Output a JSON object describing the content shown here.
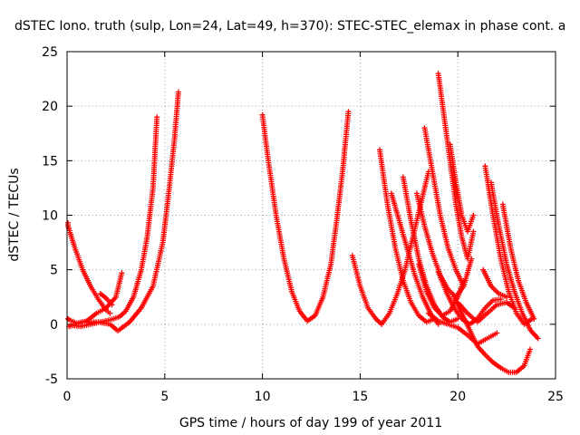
{
  "chart_data": {
    "type": "scatter",
    "title": "dSTEC Iono. truth (sulp, Lon=24, Lat=49, h=370): STEC-STEC_elemax in phase cont. a",
    "xlabel": "GPS time / hours of day 199 of year 2011",
    "ylabel": "dSTEC  / TECUs",
    "xlim": [
      0,
      25
    ],
    "ylim": [
      -5,
      25
    ],
    "xticks": [
      "0",
      "5",
      "10",
      "15",
      "20",
      "25"
    ],
    "yticks": [
      "-5",
      "0",
      "5",
      "10",
      "15",
      "20",
      "25"
    ],
    "xtick_values": [
      0,
      5,
      10,
      15,
      20,
      25
    ],
    "ytick_values": [
      -5,
      0,
      5,
      10,
      15,
      20,
      25
    ],
    "grid": true,
    "marker": "+",
    "color": "#ff0000",
    "series": [
      {
        "x": [
          0.0,
          0.4,
          0.8,
          1.2,
          1.6,
          2.0,
          2.2
        ],
        "y": [
          9.3,
          7.0,
          5.0,
          3.5,
          2.3,
          1.3,
          1.0
        ]
      },
      {
        "x": [
          0.0,
          0.5,
          1.0,
          1.5,
          2.0,
          2.5,
          2.8
        ],
        "y": [
          0.5,
          0.1,
          0.3,
          1.0,
          1.5,
          2.5,
          4.7
        ]
      },
      {
        "x": [
          0.2,
          0.7,
          1.2,
          1.7,
          2.2,
          2.7,
          3.0,
          3.4,
          3.8,
          4.1,
          4.4,
          4.6
        ],
        "y": [
          -0.1,
          -0.2,
          0.0,
          0.2,
          0.4,
          0.7,
          1.2,
          2.5,
          5.0,
          8.0,
          12.5,
          19.0
        ]
      },
      {
        "x": [
          0.1,
          0.8,
          1.6,
          2.2,
          2.6,
          3.2,
          3.8,
          4.4,
          4.9,
          5.2,
          5.5,
          5.7
        ],
        "y": [
          -0.2,
          0.2,
          0.2,
          0.0,
          -0.6,
          0.2,
          1.5,
          3.5,
          7.5,
          12.0,
          17.0,
          21.3
        ]
      },
      {
        "x": [
          1.7,
          2.0,
          2.3
        ],
        "y": [
          2.8,
          2.4,
          1.8
        ]
      },
      {
        "x": [
          10.0,
          10.3,
          10.7,
          11.1,
          11.5,
          11.9,
          12.3,
          12.7,
          13.1,
          13.5,
          13.8,
          14.1,
          14.4
        ],
        "y": [
          19.2,
          15.0,
          10.0,
          6.0,
          3.0,
          1.2,
          0.3,
          0.8,
          2.5,
          5.5,
          9.5,
          14.0,
          19.5
        ]
      },
      {
        "x": [
          14.6,
          15.0,
          15.4,
          15.8,
          16.1
        ],
        "y": [
          6.3,
          3.5,
          1.5,
          0.5,
          0.0
        ]
      },
      {
        "x": [
          16.1,
          16.5,
          16.9,
          17.3,
          17.7,
          18.1,
          18.5
        ],
        "y": [
          0.0,
          1.0,
          2.8,
          5.0,
          8.0,
          11.0,
          14.0
        ]
      },
      {
        "x": [
          16.0,
          16.4,
          16.8,
          17.2,
          17.6,
          18.0,
          18.4,
          18.8
        ],
        "y": [
          16.0,
          11.0,
          7.0,
          4.0,
          2.0,
          0.8,
          0.2,
          0.5
        ]
      },
      {
        "x": [
          16.6,
          17.0,
          17.4,
          17.8,
          18.2,
          18.6,
          19.0
        ],
        "y": [
          12.0,
          9.5,
          7.0,
          4.5,
          2.5,
          1.0,
          0.0
        ]
      },
      {
        "x": [
          17.2,
          17.6,
          18.0,
          18.4,
          18.8,
          19.2,
          19.6,
          20.0
        ],
        "y": [
          13.5,
          9.5,
          6.0,
          3.5,
          1.8,
          0.7,
          0.2,
          0.5
        ]
      },
      {
        "x": [
          18.0,
          18.4,
          18.8,
          19.2,
          19.6,
          20.0,
          20.3
        ],
        "y": [
          5.5,
          3.0,
          1.5,
          0.8,
          1.2,
          2.5,
          4.0
        ]
      },
      {
        "x": [
          17.9,
          18.3,
          18.7,
          19.1,
          19.5,
          19.9,
          20.3,
          20.7
        ],
        "y": [
          12.0,
          9.0,
          6.5,
          4.5,
          3.2,
          2.5,
          3.5,
          6.0
        ]
      },
      {
        "x": [
          18.3,
          18.7,
          19.1,
          19.5,
          19.9,
          20.3
        ],
        "y": [
          18.0,
          14.0,
          10.0,
          7.0,
          5.0,
          3.5
        ]
      },
      {
        "x": [
          19.0,
          19.3,
          19.6,
          19.9,
          20.2,
          20.5,
          20.8
        ],
        "y": [
          23.0,
          19.0,
          15.0,
          11.0,
          8.0,
          6.0,
          8.5
        ]
      },
      {
        "x": [
          19.6,
          19.9,
          20.2,
          20.5,
          20.8
        ],
        "y": [
          16.5,
          13.0,
          10.0,
          8.5,
          10.0
        ]
      },
      {
        "x": [
          19.0,
          19.4,
          19.8,
          20.2,
          20.6,
          21.0,
          21.4,
          21.8,
          22.2
        ],
        "y": [
          4.8,
          3.0,
          1.5,
          0.5,
          0.0,
          0.5,
          1.5,
          2.2,
          2.3
        ]
      },
      {
        "x": [
          18.5,
          19.0,
          19.5,
          20.0,
          20.5,
          21.0,
          21.5,
          22.0
        ],
        "y": [
          1.0,
          0.3,
          0.0,
          -0.3,
          -1.0,
          -1.8,
          -1.3,
          -0.8
        ]
      },
      {
        "x": [
          19.8,
          20.2,
          20.6,
          21.0,
          21.4,
          21.8,
          22.2,
          22.6,
          23.0,
          23.4,
          23.7
        ],
        "y": [
          2.5,
          1.0,
          -0.5,
          -2.0,
          -2.8,
          -3.5,
          -4.0,
          -4.4,
          -4.4,
          -3.8,
          -2.3
        ]
      },
      {
        "x": [
          20.0,
          20.5,
          21.0,
          21.5,
          22.0,
          22.5,
          22.9
        ],
        "y": [
          2.0,
          1.0,
          0.2,
          1.0,
          1.8,
          2.0,
          1.5
        ]
      },
      {
        "x": [
          21.4,
          21.8,
          22.2,
          22.6,
          23.0,
          23.4,
          23.8
        ],
        "y": [
          14.5,
          10.0,
          6.0,
          3.0,
          1.0,
          0.0,
          0.5
        ]
      },
      {
        "x": [
          21.7,
          22.1,
          22.5,
          22.9,
          23.3,
          23.7,
          24.1
        ],
        "y": [
          13.0,
          9.0,
          5.5,
          3.0,
          1.0,
          -0.5,
          -1.3
        ]
      },
      {
        "x": [
          22.3,
          22.7,
          23.1,
          23.5,
          23.9
        ],
        "y": [
          11.0,
          7.0,
          4.0,
          2.0,
          0.5
        ]
      },
      {
        "x": [
          21.3,
          21.7,
          22.1,
          22.5
        ],
        "y": [
          5.0,
          3.5,
          2.8,
          2.5
        ]
      }
    ]
  }
}
